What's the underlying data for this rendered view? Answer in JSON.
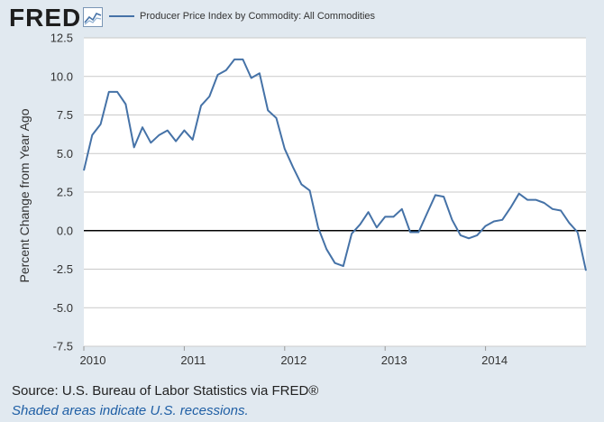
{
  "header": {
    "logo_text": "FRED",
    "logo_icon": "line-chart-icon"
  },
  "colors": {
    "series": "#4572a7",
    "plot_bg": "#ffffff",
    "page_bg": "#e1e9f0",
    "zero_line": "#000000",
    "grid": "#c9c9c9"
  },
  "chart_data": {
    "type": "line",
    "title": "",
    "xlabel": "",
    "ylabel": "Percent Change from Year Ago",
    "ylim": [
      -7.5,
      12.5
    ],
    "yticks": [
      "12.5",
      "10.0",
      "7.5",
      "5.0",
      "2.5",
      "0.0",
      "-2.5",
      "-5.0",
      "-7.5"
    ],
    "xticks": [
      "2010",
      "2011",
      "2012",
      "2013",
      "2014"
    ],
    "grid": true,
    "legend_position": "top",
    "series": [
      {
        "name": "Producer Price Index by Commodity: All Commodities",
        "x": [
          "2010-01",
          "2010-02",
          "2010-03",
          "2010-04",
          "2010-05",
          "2010-06",
          "2010-07",
          "2010-08",
          "2010-09",
          "2010-10",
          "2010-11",
          "2010-12",
          "2011-01",
          "2011-02",
          "2011-03",
          "2011-04",
          "2011-05",
          "2011-06",
          "2011-07",
          "2011-08",
          "2011-09",
          "2011-10",
          "2011-11",
          "2011-12",
          "2012-01",
          "2012-02",
          "2012-03",
          "2012-04",
          "2012-05",
          "2012-06",
          "2012-07",
          "2012-08",
          "2012-09",
          "2012-10",
          "2012-11",
          "2012-12",
          "2013-01",
          "2013-02",
          "2013-03",
          "2013-04",
          "2013-05",
          "2013-06",
          "2013-07",
          "2013-08",
          "2013-09",
          "2013-10",
          "2013-11",
          "2013-12",
          "2014-01",
          "2014-02",
          "2014-03",
          "2014-04",
          "2014-05",
          "2014-06",
          "2014-07",
          "2014-08",
          "2014-09",
          "2014-10",
          "2014-11",
          "2014-12"
        ],
        "values": [
          3.9,
          6.2,
          6.9,
          9.0,
          9.0,
          8.2,
          5.4,
          6.7,
          5.7,
          6.2,
          6.5,
          5.8,
          6.5,
          5.9,
          8.1,
          8.7,
          10.1,
          10.4,
          11.1,
          11.1,
          9.9,
          10.2,
          7.8,
          7.3,
          5.3,
          4.1,
          3.0,
          2.6,
          0.2,
          -1.2,
          -2.1,
          -2.3,
          -0.2,
          0.4,
          1.2,
          0.2,
          0.9,
          0.9,
          1.4,
          -0.1,
          -0.1,
          1.1,
          2.3,
          2.2,
          0.7,
          -0.3,
          -0.5,
          -0.3,
          0.3,
          0.6,
          0.7,
          1.5,
          2.4,
          2.0,
          2.0,
          1.8,
          1.4,
          1.3,
          0.5,
          -0.1
        ]
      },
      {
        "name": "",
        "x": [
          "2014-12",
          "2015-01"
        ],
        "values": [
          -0.1,
          -2.6
        ]
      }
    ]
  },
  "footer": {
    "source": "Source: U.S. Bureau of Labor Statistics via FRED®",
    "recessions": "Shaded areas indicate U.S. recessions."
  }
}
